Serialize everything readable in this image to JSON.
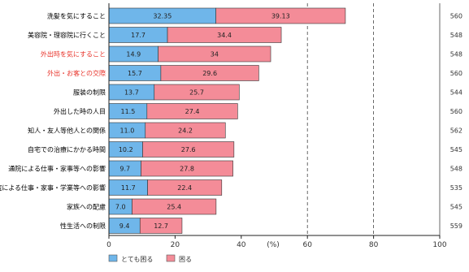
{
  "chart_data": {
    "type": "bar",
    "orientation": "horizontal",
    "stacked": true,
    "categories": [
      "洗髪を気にすること",
      "美容院・理容院に行くこと",
      "外出時を気にすること",
      "外出・お客との交際",
      "服装の制限",
      "外出した時の人目",
      "知人・友人等他人との関係",
      "自宅での治療にかかる時間",
      "通院による仕事・家事等への影響",
      "通院による仕事・家事・学業等への影響",
      "家族への配慮",
      "性生活への制限"
    ],
    "highlight_colors": [
      "#000000",
      "#000000",
      "#e8332a",
      "#e8332a",
      "#000000",
      "#000000",
      "#000000",
      "#000000",
      "#000000",
      "#000000",
      "#000000",
      "#000000"
    ],
    "series": [
      {
        "name": "とても困る",
        "color": "#6fb6ea",
        "values": [
          32.35,
          17.7,
          14.9,
          15.7,
          13.7,
          11.5,
          11.0,
          10.2,
          9.7,
          11.7,
          7.0,
          9.4
        ]
      },
      {
        "name": "困る",
        "color": "#f48c98",
        "values": [
          39.13,
          34.4,
          34.0,
          29.6,
          25.7,
          27.4,
          24.2,
          27.6,
          27.8,
          22.4,
          25.4,
          12.7
        ]
      }
    ],
    "value_labels": [
      [
        "32.35",
        "39.13"
      ],
      [
        "17.7",
        "34.4"
      ],
      [
        "14.9",
        "34"
      ],
      [
        "15.7",
        "29.6"
      ],
      [
        "13.7",
        "25.7"
      ],
      [
        "11.5",
        "27.4"
      ],
      [
        "11.0",
        "24.2"
      ],
      [
        "10.2",
        "27.6"
      ],
      [
        "9.7",
        "27.8"
      ],
      [
        "11.7",
        "22.4"
      ],
      [
        "7.0",
        "25.4"
      ],
      [
        "9.4",
        "12.7"
      ]
    ],
    "n_values": [
      "560",
      "548",
      "548",
      "560",
      "544",
      "560",
      "562",
      "545",
      "548",
      "535",
      "545",
      "559"
    ],
    "xlim": [
      0,
      100
    ],
    "xticks": [
      0,
      20,
      40,
      60,
      80,
      100
    ],
    "xlabel": "(%)",
    "grid": "dashed vertical at 60 and 80",
    "legend_position": "bottom-left"
  }
}
